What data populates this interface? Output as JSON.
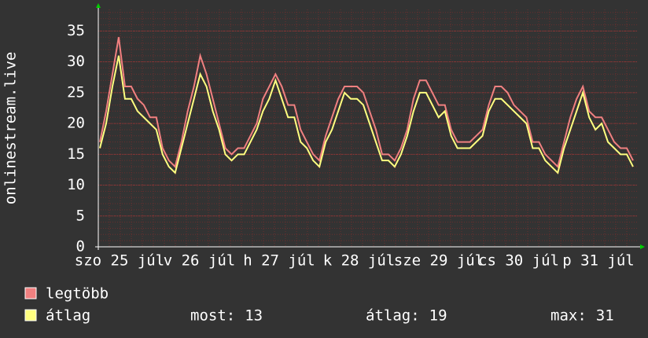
{
  "chart_data": {
    "type": "line",
    "y_label": "onlinestream.live",
    "x_labels": [
      "szo 25 júl",
      "v 26 júl",
      "h 27 júl",
      "k 28 júl",
      "sze 29 júl",
      "cs 30 júl",
      "p 31 júl"
    ],
    "ylim": [
      0,
      38.5
    ],
    "yticks": [
      0,
      5,
      10,
      15,
      20,
      25,
      30,
      35
    ],
    "grid": true,
    "series": [
      {
        "name": "legtöbb",
        "color": "#f08080",
        "values": [
          17,
          22,
          28,
          34,
          26,
          26,
          24,
          23,
          21,
          21,
          16,
          14,
          13,
          17,
          22,
          26,
          31,
          28,
          24,
          20,
          16,
          15,
          16,
          16,
          18,
          20,
          24,
          26,
          28,
          26,
          23,
          23,
          19,
          17,
          15,
          14,
          18,
          21,
          24,
          26,
          26,
          26,
          25,
          22,
          19,
          15,
          15,
          14,
          16,
          19,
          24,
          27,
          27,
          25,
          23,
          23,
          19,
          17,
          17,
          17,
          18,
          19,
          23,
          26,
          26,
          25,
          23,
          22,
          21,
          17,
          17,
          15,
          14,
          13,
          17,
          21,
          24,
          26,
          22,
          21,
          21,
          19,
          17,
          16,
          16,
          14
        ]
      },
      {
        "name": "átlag",
        "color": "#ffff80",
        "values": [
          16,
          20,
          26,
          31,
          24,
          24,
          22,
          21,
          20,
          19,
          15,
          13,
          12,
          16,
          20,
          24,
          28,
          26,
          22,
          19,
          15,
          14,
          15,
          15,
          17,
          19,
          22,
          24,
          27,
          24,
          21,
          21,
          17,
          16,
          14,
          13,
          17,
          19,
          22,
          25,
          24,
          24,
          23,
          20,
          17,
          14,
          14,
          13,
          15,
          18,
          22,
          25,
          25,
          23,
          21,
          22,
          18,
          16,
          16,
          16,
          17,
          18,
          22,
          24,
          24,
          23,
          22,
          21,
          20,
          16,
          16,
          14,
          13,
          12,
          16,
          19,
          22,
          25,
          21,
          19,
          20,
          17,
          16,
          15,
          15,
          13
        ]
      }
    ],
    "stats": [
      {
        "label": "most:",
        "value": 13
      },
      {
        "label": "átlag:",
        "value": 19
      },
      {
        "label": "max:",
        "value": 31
      }
    ]
  }
}
